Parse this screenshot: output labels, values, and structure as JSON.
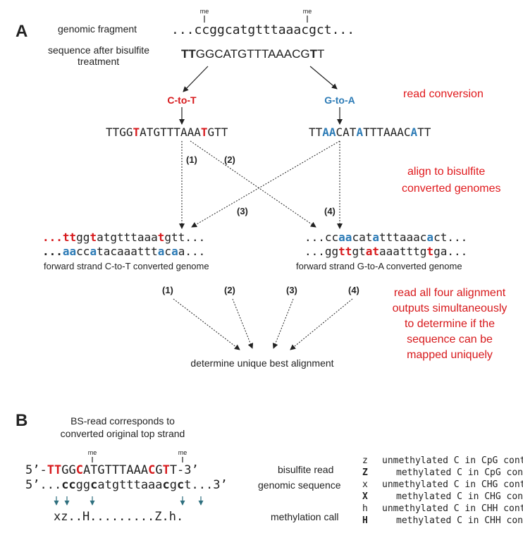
{
  "panel_a": {
    "letter": "A",
    "genomic_fragment_label": "genomic fragment",
    "genomic_fragment_seq": "...ccggcatgtttaaacgct...",
    "me_mark": "me",
    "after_bisulfite_label_line1": "sequence after bisulfite",
    "after_bisulfite_label_line2": "treatment",
    "after_bisulfite_seq": [
      "TT",
      "GGCATGTTTAAACG",
      "T",
      "T"
    ],
    "ct_label": "C-to-T",
    "ga_label": "G-to-A",
    "read_conversion": "read conversion",
    "ct_read": [
      "TTGG",
      "T",
      "ATGTTTAAA",
      "T",
      "GTT"
    ],
    "ga_read": [
      "TT",
      "AA",
      "CAT",
      "A",
      "TTTAAAC",
      "A",
      "TT"
    ],
    "align_line1": "align to bisulfite",
    "align_line2": "converted genomes",
    "path_labels": [
      "(1)",
      "(2)",
      "(3)",
      "(4)"
    ],
    "genome_ct_top": [
      "...",
      "tt",
      "gg",
      "t",
      "atgtttaaa",
      "t",
      "gtt..."
    ],
    "genome_ct_bottom": [
      "...",
      "aa",
      "cc",
      "a",
      "tacaaattt",
      "a",
      "c",
      "a",
      "a..."
    ],
    "genome_ct_label": "forward strand C-to-T converted genome",
    "genome_ga_top": [
      "...cc",
      "aa",
      "cat",
      "a",
      "tttaaac",
      "a",
      "ct..."
    ],
    "genome_ga_bottom": [
      "...gg",
      "tt",
      "gt",
      "a",
      "t",
      "aaatttg",
      "t",
      "ga..."
    ],
    "genome_ga_label": "forward strand G-to-A converted genome",
    "read_all_lines": [
      "read all four alignment",
      "outputs simultaneously",
      "to determine if the",
      "sequence can be",
      "mapped uniquely"
    ],
    "best_alignment": "determine unique best alignment"
  },
  "panel_b": {
    "letter": "B",
    "title_line1": "BS-read corresponds to",
    "title_line2": "converted original top strand",
    "me_mark": "me",
    "read_parts": [
      "5’-",
      "TT",
      "GG",
      "C",
      "ATGTTTAAA",
      "C",
      "G",
      "T",
      "T-3’"
    ],
    "genomic_parts": [
      "5’...",
      "cc",
      "gg",
      "c",
      "atgtttaaa",
      "c",
      "g",
      "c",
      "t...3’"
    ],
    "call_string": "xz..H.........Z.h.",
    "bisulfite_read_label": "bisulfite read",
    "genomic_sequence_label": "genomic sequence",
    "methylation_call_label": "methylation call",
    "legend": [
      {
        "code": "z",
        "text": "unmethylated C in CpG context"
      },
      {
        "code": "Z",
        "text": "methylated C in CpG context"
      },
      {
        "code": "x",
        "text": "unmethylated C in CHG context"
      },
      {
        "code": "X",
        "text": "methylated C in CHG context"
      },
      {
        "code": "h",
        "text": "unmethylated C in CHH context"
      },
      {
        "code": "H",
        "text": "methylated C in CHH context"
      }
    ]
  },
  "colors": {
    "red": "#d7191c",
    "blue": "#2c7bb6",
    "text": "#222222",
    "arrow_teal": "#2e6f7e"
  }
}
